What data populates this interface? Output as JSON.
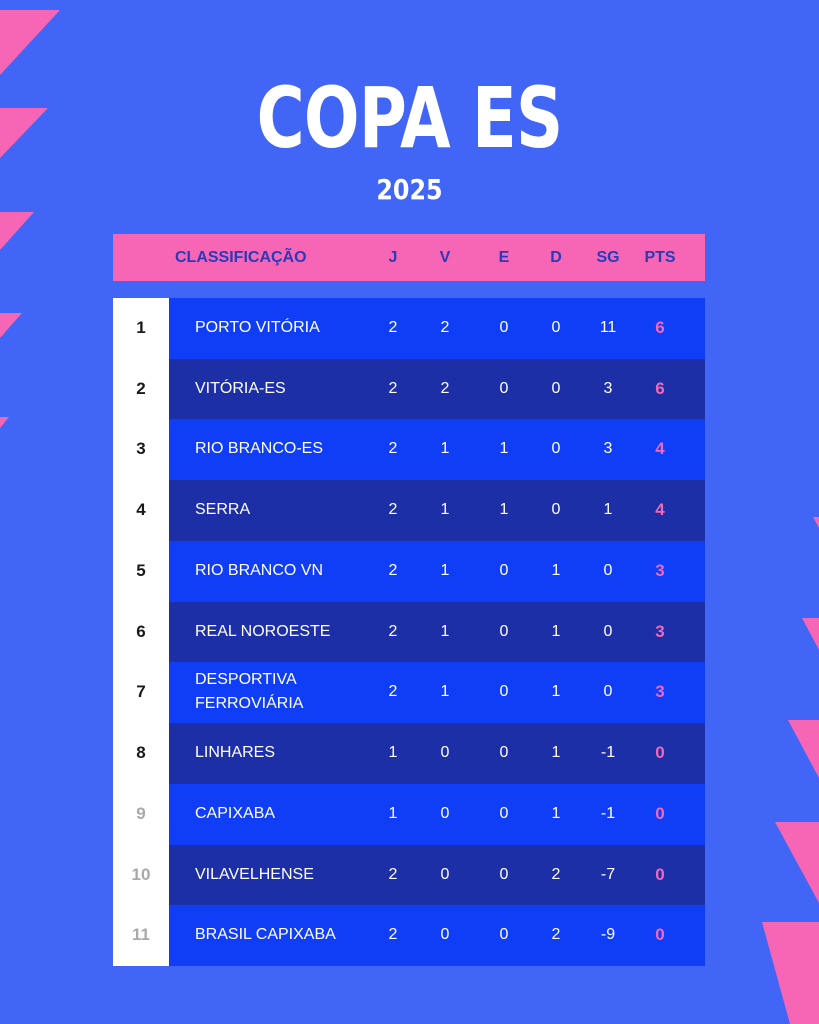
{
  "title": "COPA ES",
  "year": "2025",
  "colors": {
    "background": "#4166f5",
    "accent_pink": "#f765b5",
    "row_light": "#0f3ef6",
    "row_dark": "#1d2fa6",
    "header_text": "#2a3ab8"
  },
  "header": {
    "classificacao": "CLASSIFICAÇÃO",
    "j": "J",
    "v": "V",
    "e": "E",
    "d": "D",
    "sg": "SG",
    "pts": "PTS"
  },
  "rows": [
    {
      "rank": "1",
      "team": "PORTO VITÓRIA",
      "j": "2",
      "v": "2",
      "e": "0",
      "d": "0",
      "sg": "11",
      "pts": "6"
    },
    {
      "rank": "2",
      "team": "VITÓRIA-ES",
      "j": "2",
      "v": "2",
      "e": "0",
      "d": "0",
      "sg": "3",
      "pts": "6"
    },
    {
      "rank": "3",
      "team": "RIO BRANCO-ES",
      "j": "2",
      "v": "1",
      "e": "1",
      "d": "0",
      "sg": "3",
      "pts": "4"
    },
    {
      "rank": "4",
      "team": "SERRA",
      "j": "2",
      "v": "1",
      "e": "1",
      "d": "0",
      "sg": "1",
      "pts": "4"
    },
    {
      "rank": "5",
      "team": "RIO BRANCO VN",
      "j": "2",
      "v": "1",
      "e": "0",
      "d": "1",
      "sg": "0",
      "pts": "3"
    },
    {
      "rank": "6",
      "team": "REAL NOROESTE",
      "j": "2",
      "v": "1",
      "e": "0",
      "d": "1",
      "sg": "0",
      "pts": "3"
    },
    {
      "rank": "7",
      "team": "DESPORTIVA FERROVIÁRIA",
      "j": "2",
      "v": "1",
      "e": "0",
      "d": "1",
      "sg": "0",
      "pts": "3"
    },
    {
      "rank": "8",
      "team": "LINHARES",
      "j": "1",
      "v": "0",
      "e": "0",
      "d": "1",
      "sg": "-1",
      "pts": "0"
    },
    {
      "rank": "9",
      "team": "CAPIXABA",
      "j": "1",
      "v": "0",
      "e": "0",
      "d": "1",
      "sg": "-1",
      "pts": "0"
    },
    {
      "rank": "10",
      "team": "VILAVELHENSE",
      "j": "2",
      "v": "0",
      "e": "0",
      "d": "2",
      "sg": "-7",
      "pts": "0"
    },
    {
      "rank": "11",
      "team": "BRASIL CAPIXABA",
      "j": "2",
      "v": "0",
      "e": "0",
      "d": "2",
      "sg": "-9",
      "pts": "0"
    }
  ]
}
